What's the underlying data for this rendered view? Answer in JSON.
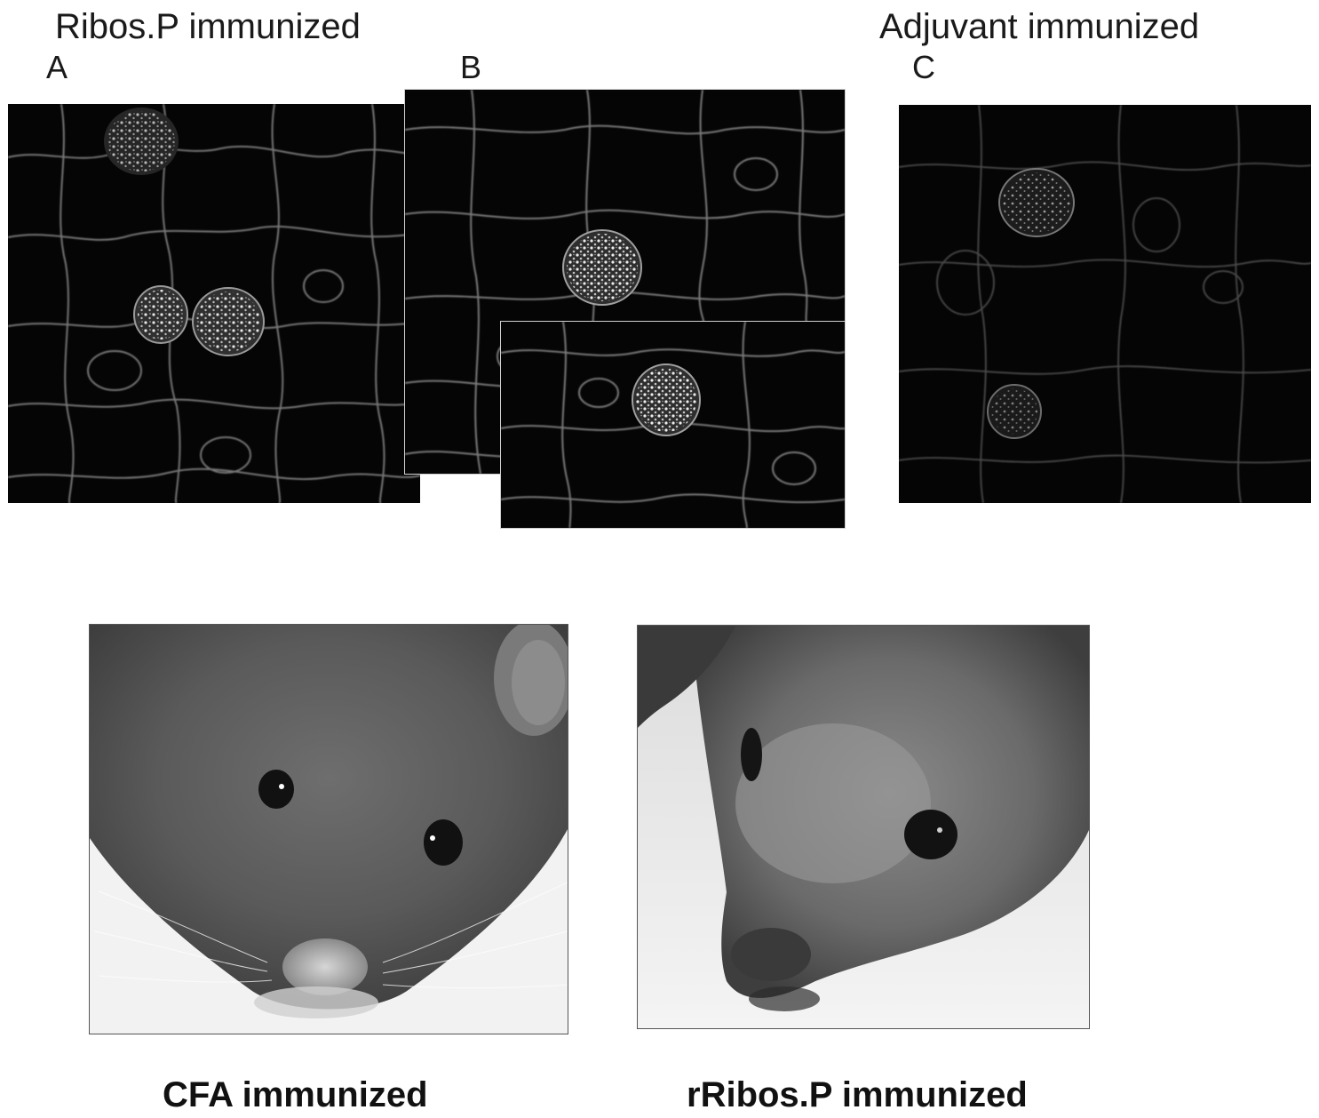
{
  "figure": {
    "top_left_heading": "Ribos.P immunized",
    "top_right_heading": "Adjuvant immunized",
    "panel_labels": {
      "a": "A",
      "b": "B",
      "c": "C"
    },
    "bottom_captions": {
      "left": "CFA immunized",
      "right": "rRibos.P immunized"
    }
  }
}
